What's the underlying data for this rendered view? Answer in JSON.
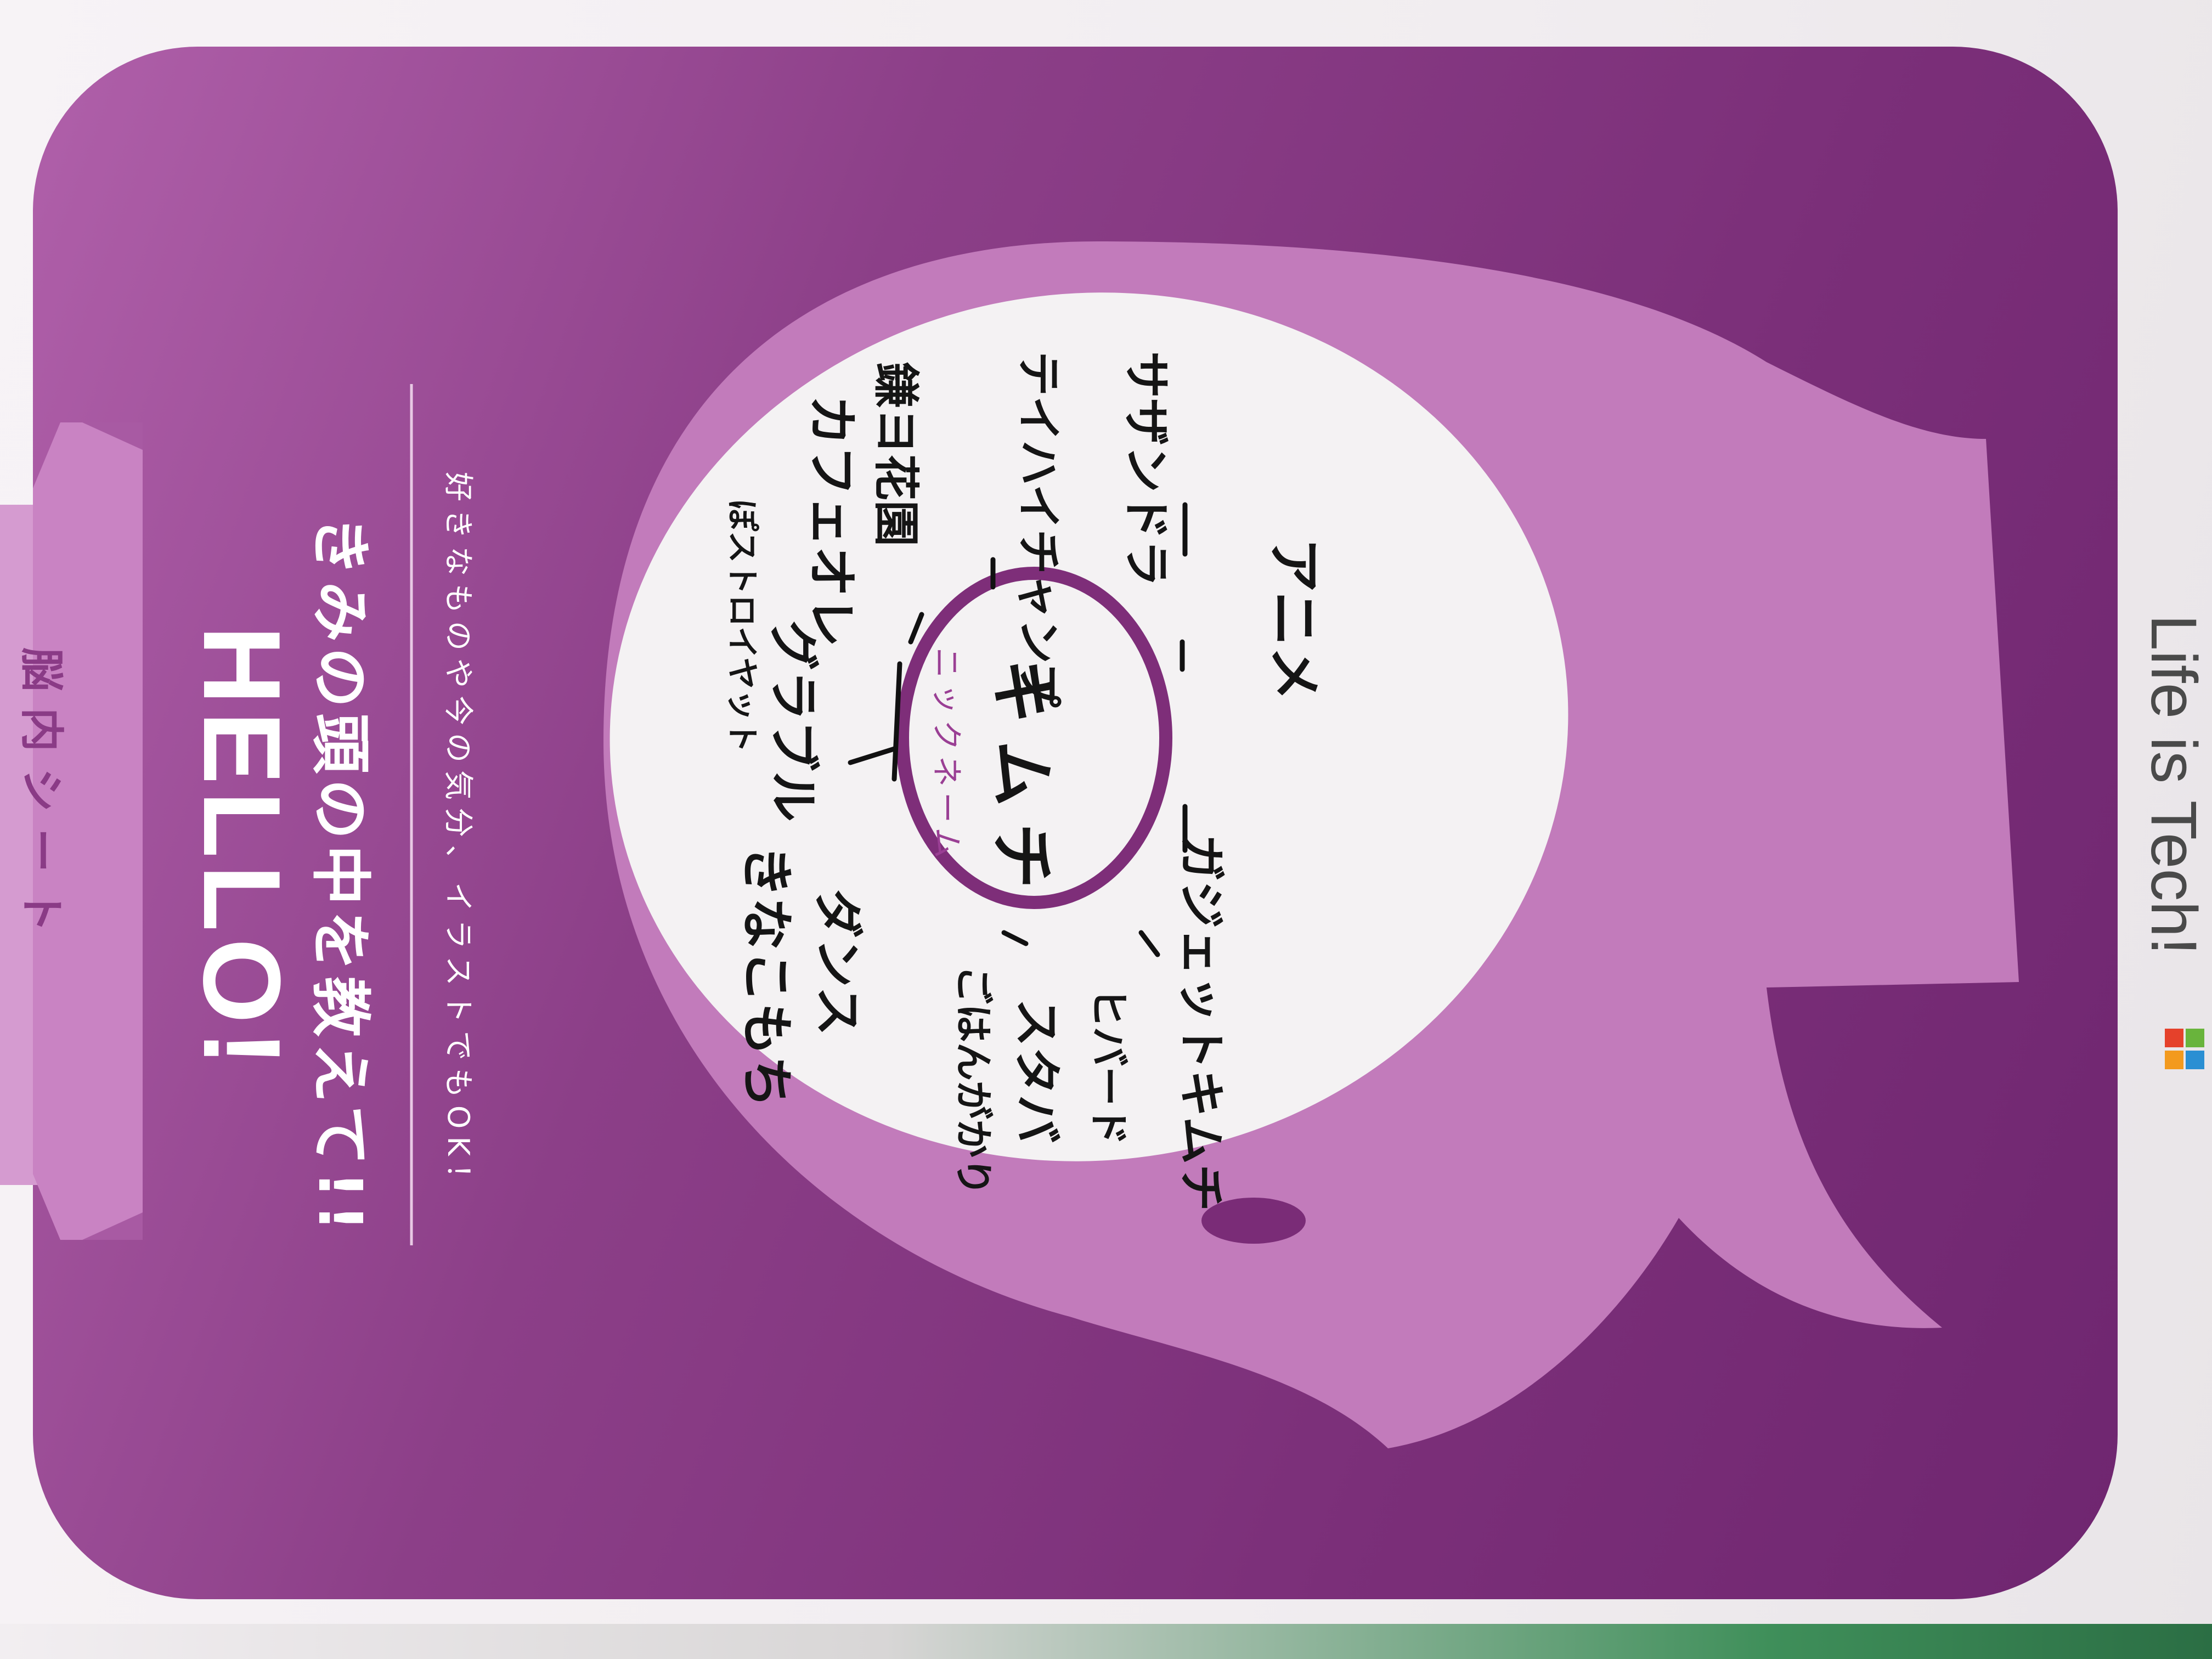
{
  "sheet": {
    "ribbon_label": "脳内シート",
    "hello": "HELLO!",
    "headline": "きみの頭の中を教えて!!",
    "subline": "好きなものや今の気分、イラストでもOK！",
    "nickname_label": "ニックネーム",
    "nickname": "キムチ",
    "brand": "Life is Tech!"
  },
  "handwritten": {
    "item_1": "きなこもち",
    "item_2": "ダンス",
    "item_3": "ごはんがかり",
    "item_4": "グラブル",
    "item_5": "ぽストロイヤット",
    "item_6": "カフェオレ",
    "item_7": "鎌ヨ花園",
    "item_8": "スタバ",
    "item_9": "ヒバード",
    "item_10": "ガジェットキムチ",
    "item_11": "テイハイチャンプ",
    "item_12": "サザンドラ",
    "item_13": "アニメ"
  },
  "colors": {
    "card_purple": "#8c3f88",
    "head_pink": "#c27bbb",
    "ribbon_pink": "#d59bd0",
    "bubble_white": "#f4f2f3",
    "nickname_ring": "#7e2e79",
    "brand_red": "#e5412b",
    "brand_orange": "#f39a1e",
    "brand_green": "#69b43c",
    "brand_blue": "#2a8fd3"
  }
}
